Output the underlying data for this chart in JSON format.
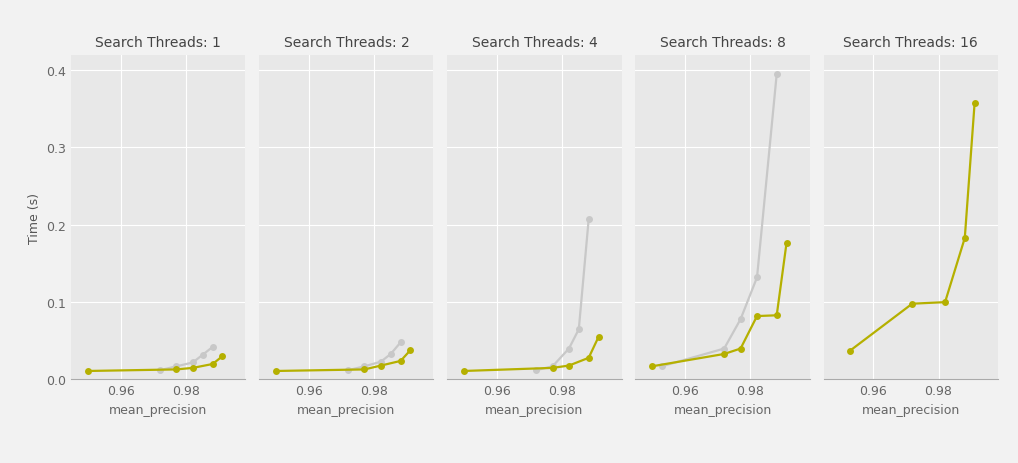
{
  "subplots": [
    {
      "title": "Search Threads: 1",
      "gray": {
        "x": [
          0.972,
          0.977,
          0.982,
          0.985,
          0.988
        ],
        "y": [
          0.012,
          0.017,
          0.022,
          0.032,
          0.042
        ]
      },
      "olive": {
        "x": [
          0.95,
          0.977,
          0.982,
          0.988,
          0.991
        ],
        "y": [
          0.011,
          0.013,
          0.015,
          0.02,
          0.03
        ]
      }
    },
    {
      "title": "Search Threads: 2",
      "gray": {
        "x": [
          0.972,
          0.977,
          0.982,
          0.985,
          0.988
        ],
        "y": [
          0.012,
          0.017,
          0.023,
          0.033,
          0.048
        ]
      },
      "olive": {
        "x": [
          0.95,
          0.977,
          0.982,
          0.988,
          0.991
        ],
        "y": [
          0.011,
          0.013,
          0.018,
          0.024,
          0.038
        ]
      }
    },
    {
      "title": "Search Threads: 4",
      "gray": {
        "x": [
          0.972,
          0.977,
          0.982,
          0.985,
          0.988
        ],
        "y": [
          0.012,
          0.017,
          0.04,
          0.065,
          0.207
        ]
      },
      "olive": {
        "x": [
          0.95,
          0.977,
          0.982,
          0.988,
          0.991
        ],
        "y": [
          0.011,
          0.015,
          0.018,
          0.028,
          0.055
        ]
      }
    },
    {
      "title": "Search Threads: 8",
      "gray": {
        "x": [
          0.953,
          0.972,
          0.977,
          0.982,
          0.988
        ],
        "y": [
          0.017,
          0.04,
          0.078,
          0.132,
          0.395
        ]
      },
      "olive": {
        "x": [
          0.95,
          0.972,
          0.977,
          0.982,
          0.988,
          0.991
        ],
        "y": [
          0.017,
          0.033,
          0.04,
          0.082,
          0.083,
          0.177
        ]
      }
    },
    {
      "title": "Search Threads: 16",
      "gray": null,
      "olive": {
        "x": [
          0.953,
          0.972,
          0.982,
          0.988,
          0.991
        ],
        "y": [
          0.037,
          0.098,
          0.1,
          0.183,
          0.358
        ]
      }
    }
  ],
  "ylim": [
    0,
    0.42
  ],
  "xlim": [
    0.945,
    0.998
  ],
  "xticks": [
    0.96,
    0.98
  ],
  "yticks": [
    0.0,
    0.1,
    0.2,
    0.3,
    0.4
  ],
  "ylabel": "Time (s)",
  "xlabel": "mean_precision",
  "gray_color": "#c8c8c8",
  "olive_color": "#b5b000",
  "background_color": "#f2f2f2",
  "plot_background": "#e8e8e8",
  "grid_color": "#ffffff",
  "marker_size": 5,
  "line_width": 1.6,
  "title_fontsize": 10,
  "label_fontsize": 9,
  "tick_fontsize": 9
}
